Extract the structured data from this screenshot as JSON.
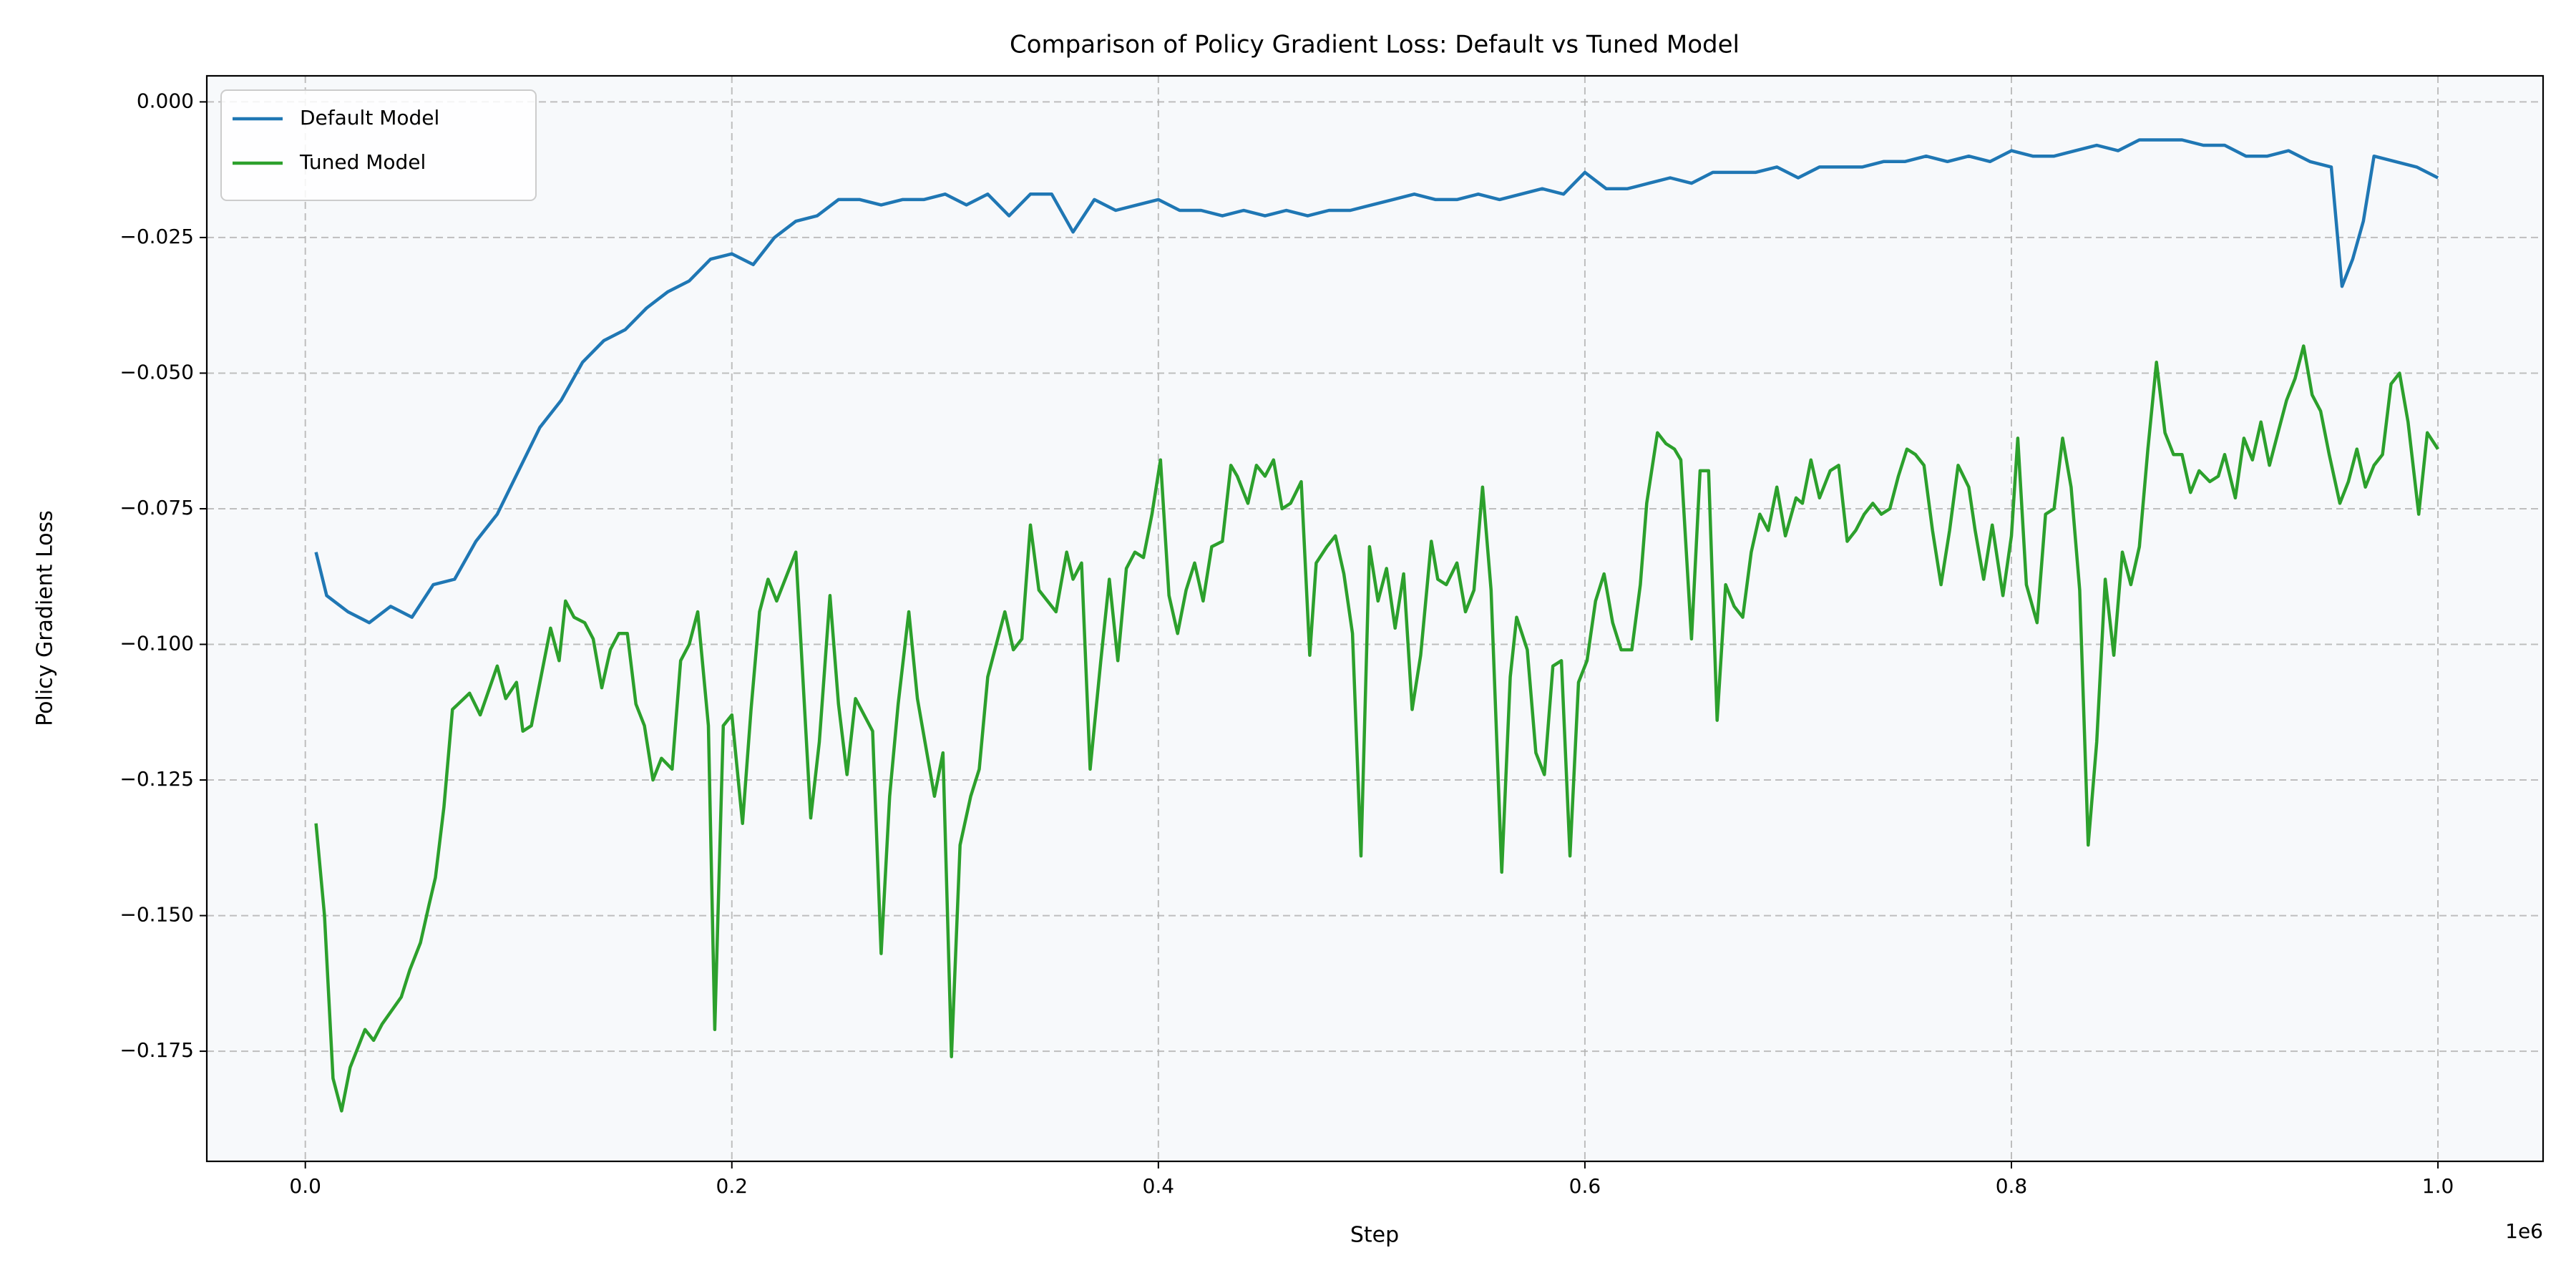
{
  "chart_data": {
    "type": "line",
    "title": "Comparison of Policy Gradient Loss: Default vs Tuned Model",
    "x_label": "Step",
    "y_label": "Policy Gradient Loss",
    "x_offset_label": "1e6",
    "xlim": [
      -46200,
      1049300
    ],
    "ylim": [
      -0.1953,
      0.0048
    ],
    "xticks": [
      {
        "value": 0,
        "label": "0.0"
      },
      {
        "value": 200000,
        "label": "0.2"
      },
      {
        "value": 400000,
        "label": "0.4"
      },
      {
        "value": 600000,
        "label": "0.6"
      },
      {
        "value": 800000,
        "label": "0.8"
      },
      {
        "value": 1000000,
        "label": "1.0"
      }
    ],
    "yticks": [
      {
        "value": 0,
        "label": "0.000"
      },
      {
        "value": -0.025,
        "label": "−0.025"
      },
      {
        "value": -0.05,
        "label": "−0.050"
      },
      {
        "value": -0.075,
        "label": "−0.075"
      },
      {
        "value": -0.1,
        "label": "−0.100"
      },
      {
        "value": -0.125,
        "label": "−0.125"
      },
      {
        "value": -0.15,
        "label": "−0.150"
      },
      {
        "value": -0.175,
        "label": "−0.175"
      }
    ],
    "grid": true,
    "legend": "upper left",
    "series": [
      {
        "name": "Default Model",
        "color": "#1f77b4",
        "x": [
          5000,
          10000,
          20000,
          30000,
          40000,
          50000,
          60000,
          70000,
          80000,
          90000,
          100000,
          110000,
          120000,
          130000,
          140000,
          150000,
          160000,
          170000,
          180000,
          190000,
          200000,
          210000,
          220000,
          230000,
          240000,
          250000,
          260000,
          270000,
          280000,
          290000,
          300000,
          310000,
          320000,
          330000,
          340000,
          350000,
          360000,
          370000,
          380000,
          390000,
          400000,
          410000,
          420000,
          430000,
          440000,
          450000,
          460000,
          470000,
          480000,
          490000,
          500000,
          510000,
          520000,
          530000,
          540000,
          550000,
          560000,
          570000,
          580000,
          590000,
          600000,
          610000,
          620000,
          630000,
          640000,
          650000,
          660000,
          670000,
          680000,
          690000,
          700000,
          710000,
          720000,
          730000,
          740000,
          750000,
          760000,
          770000,
          780000,
          790000,
          800000,
          810000,
          820000,
          830000,
          840000,
          850000,
          860000,
          870000,
          880000,
          890000,
          900000,
          910000,
          920000,
          930000,
          940000,
          950000,
          955000,
          960000,
          965000,
          970000,
          980000,
          990000,
          1000000
        ],
        "values": [
          -0.083,
          -0.091,
          -0.094,
          -0.096,
          -0.093,
          -0.095,
          -0.089,
          -0.088,
          -0.081,
          -0.076,
          -0.068,
          -0.06,
          -0.055,
          -0.048,
          -0.044,
          -0.042,
          -0.038,
          -0.035,
          -0.033,
          -0.029,
          -0.028,
          -0.03,
          -0.025,
          -0.022,
          -0.021,
          -0.018,
          -0.018,
          -0.019,
          -0.018,
          -0.018,
          -0.017,
          -0.019,
          -0.017,
          -0.021,
          -0.017,
          -0.017,
          -0.024,
          -0.018,
          -0.02,
          -0.019,
          -0.018,
          -0.02,
          -0.02,
          -0.021,
          -0.02,
          -0.021,
          -0.02,
          -0.021,
          -0.02,
          -0.02,
          -0.019,
          -0.018,
          -0.017,
          -0.018,
          -0.018,
          -0.017,
          -0.018,
          -0.017,
          -0.016,
          -0.017,
          -0.013,
          -0.016,
          -0.016,
          -0.015,
          -0.014,
          -0.015,
          -0.013,
          -0.013,
          -0.013,
          -0.012,
          -0.014,
          -0.012,
          -0.012,
          -0.012,
          -0.011,
          -0.011,
          -0.01,
          -0.011,
          -0.01,
          -0.011,
          -0.009,
          -0.01,
          -0.01,
          -0.009,
          -0.008,
          -0.009,
          -0.007,
          -0.007,
          -0.007,
          -0.008,
          -0.008,
          -0.01,
          -0.01,
          -0.009,
          -0.011,
          -0.012,
          -0.034,
          -0.029,
          -0.022,
          -0.01,
          -0.011,
          -0.012,
          -0.014
        ]
      },
      {
        "name": "Tuned Model",
        "color": "#2ca02c",
        "x": [
          5000,
          9000,
          13000,
          17000,
          21000,
          28000,
          32000,
          36000,
          45000,
          49000,
          54000,
          58000,
          61000,
          65000,
          69000,
          77000,
          82000,
          90000,
          94000,
          99000,
          102000,
          106000,
          111000,
          115000,
          119000,
          122000,
          126000,
          131000,
          135000,
          139000,
          143000,
          147000,
          151000,
          155000,
          159000,
          163000,
          167000,
          172000,
          176000,
          180000,
          184000,
          189000,
          192000,
          196000,
          200000,
          205000,
          209000,
          213000,
          217000,
          221000,
          230000,
          233000,
          237000,
          241000,
          246000,
          250000,
          254000,
          258000,
          266000,
          270000,
          274000,
          278000,
          283000,
          287000,
          295000,
          299000,
          303000,
          307000,
          312000,
          316000,
          320000,
          328000,
          332000,
          336000,
          340000,
          344000,
          352000,
          357000,
          360000,
          364000,
          368000,
          373000,
          377000,
          381000,
          385000,
          389000,
          393000,
          397000,
          401000,
          405000,
          409000,
          413000,
          417000,
          421000,
          425000,
          430000,
          434000,
          437000,
          442000,
          446000,
          450000,
          454000,
          458000,
          462000,
          467000,
          471000,
          474000,
          479000,
          483000,
          487000,
          491000,
          495000,
          499000,
          503000,
          507000,
          511000,
          515000,
          519000,
          523000,
          528000,
          531000,
          535000,
          540000,
          544000,
          548000,
          552000,
          556000,
          561000,
          565000,
          568000,
          573000,
          577000,
          581000,
          585000,
          589000,
          593000,
          597000,
          601000,
          605000,
          609000,
          613000,
          617000,
          622000,
          626000,
          629000,
          634000,
          638000,
          642000,
          645000,
          650000,
          654000,
          658000,
          662000,
          666000,
          670000,
          674000,
          678000,
          682000,
          686000,
          690000,
          694000,
          699000,
          702000,
          706000,
          710000,
          715000,
          719000,
          723000,
          727000,
          731000,
          735000,
          739000,
          743000,
          747000,
          751000,
          755000,
          759000,
          763000,
          767000,
          771000,
          775000,
          780000,
          783000,
          787000,
          791000,
          796000,
          800000,
          803000,
          807000,
          812000,
          816000,
          820000,
          824000,
          828000,
          832000,
          836000,
          840000,
          844000,
          848000,
          852000,
          856000,
          860000,
          864000,
          868000,
          872000,
          876000,
          880000,
          884000,
          888000,
          893000,
          897000,
          900000,
          905000,
          909000,
          913000,
          917000,
          921000,
          925000,
          929000,
          933000,
          937000,
          941000,
          945000,
          949000,
          954000,
          958000,
          962000,
          966000,
          970000,
          974000,
          978000,
          982000,
          986000,
          991000,
          995000,
          1000000
        ],
        "values": [
          -0.133,
          -0.15,
          -0.18,
          -0.186,
          -0.178,
          -0.171,
          -0.173,
          -0.17,
          -0.165,
          -0.16,
          -0.155,
          -0.148,
          -0.143,
          -0.13,
          -0.112,
          -0.109,
          -0.113,
          -0.104,
          -0.11,
          -0.107,
          -0.116,
          -0.115,
          -0.105,
          -0.097,
          -0.103,
          -0.092,
          -0.095,
          -0.096,
          -0.099,
          -0.108,
          -0.101,
          -0.098,
          -0.098,
          -0.111,
          -0.115,
          -0.125,
          -0.121,
          -0.123,
          -0.103,
          -0.1,
          -0.094,
          -0.115,
          -0.171,
          -0.115,
          -0.113,
          -0.133,
          -0.112,
          -0.094,
          -0.088,
          -0.092,
          -0.083,
          -0.104,
          -0.132,
          -0.118,
          -0.091,
          -0.111,
          -0.124,
          -0.11,
          -0.116,
          -0.157,
          -0.128,
          -0.111,
          -0.094,
          -0.11,
          -0.128,
          -0.12,
          -0.176,
          -0.137,
          -0.128,
          -0.123,
          -0.106,
          -0.094,
          -0.101,
          -0.099,
          -0.078,
          -0.09,
          -0.094,
          -0.083,
          -0.088,
          -0.085,
          -0.123,
          -0.103,
          -0.088,
          -0.103,
          -0.086,
          -0.083,
          -0.084,
          -0.076,
          -0.066,
          -0.091,
          -0.098,
          -0.09,
          -0.085,
          -0.092,
          -0.082,
          -0.081,
          -0.067,
          -0.069,
          -0.074,
          -0.067,
          -0.069,
          -0.066,
          -0.075,
          -0.074,
          -0.07,
          -0.102,
          -0.085,
          -0.082,
          -0.08,
          -0.087,
          -0.098,
          -0.139,
          -0.082,
          -0.092,
          -0.086,
          -0.097,
          -0.087,
          -0.112,
          -0.102,
          -0.081,
          -0.088,
          -0.089,
          -0.085,
          -0.094,
          -0.09,
          -0.071,
          -0.09,
          -0.142,
          -0.106,
          -0.095,
          -0.101,
          -0.12,
          -0.124,
          -0.104,
          -0.103,
          -0.139,
          -0.107,
          -0.103,
          -0.092,
          -0.087,
          -0.096,
          -0.101,
          -0.101,
          -0.089,
          -0.074,
          -0.061,
          -0.063,
          -0.064,
          -0.066,
          -0.099,
          -0.068,
          -0.068,
          -0.114,
          -0.089,
          -0.093,
          -0.095,
          -0.083,
          -0.076,
          -0.079,
          -0.071,
          -0.08,
          -0.073,
          -0.074,
          -0.066,
          -0.073,
          -0.068,
          -0.067,
          -0.081,
          -0.079,
          -0.076,
          -0.074,
          -0.076,
          -0.075,
          -0.069,
          -0.064,
          -0.065,
          -0.067,
          -0.079,
          -0.089,
          -0.079,
          -0.067,
          -0.071,
          -0.079,
          -0.088,
          -0.078,
          -0.091,
          -0.08,
          -0.062,
          -0.089,
          -0.096,
          -0.076,
          -0.075,
          -0.062,
          -0.071,
          -0.09,
          -0.137,
          -0.118,
          -0.088,
          -0.102,
          -0.083,
          -0.089,
          -0.082,
          -0.064,
          -0.048,
          -0.061,
          -0.065,
          -0.065,
          -0.072,
          -0.068,
          -0.07,
          -0.069,
          -0.065,
          -0.073,
          -0.062,
          -0.066,
          -0.059,
          -0.067,
          -0.061,
          -0.055,
          -0.051,
          -0.045,
          -0.054,
          -0.057,
          -0.065,
          -0.074,
          -0.07,
          -0.064,
          -0.071,
          -0.067,
          -0.065,
          -0.052,
          -0.05,
          -0.059,
          -0.076,
          -0.061,
          -0.064
        ]
      }
    ]
  }
}
